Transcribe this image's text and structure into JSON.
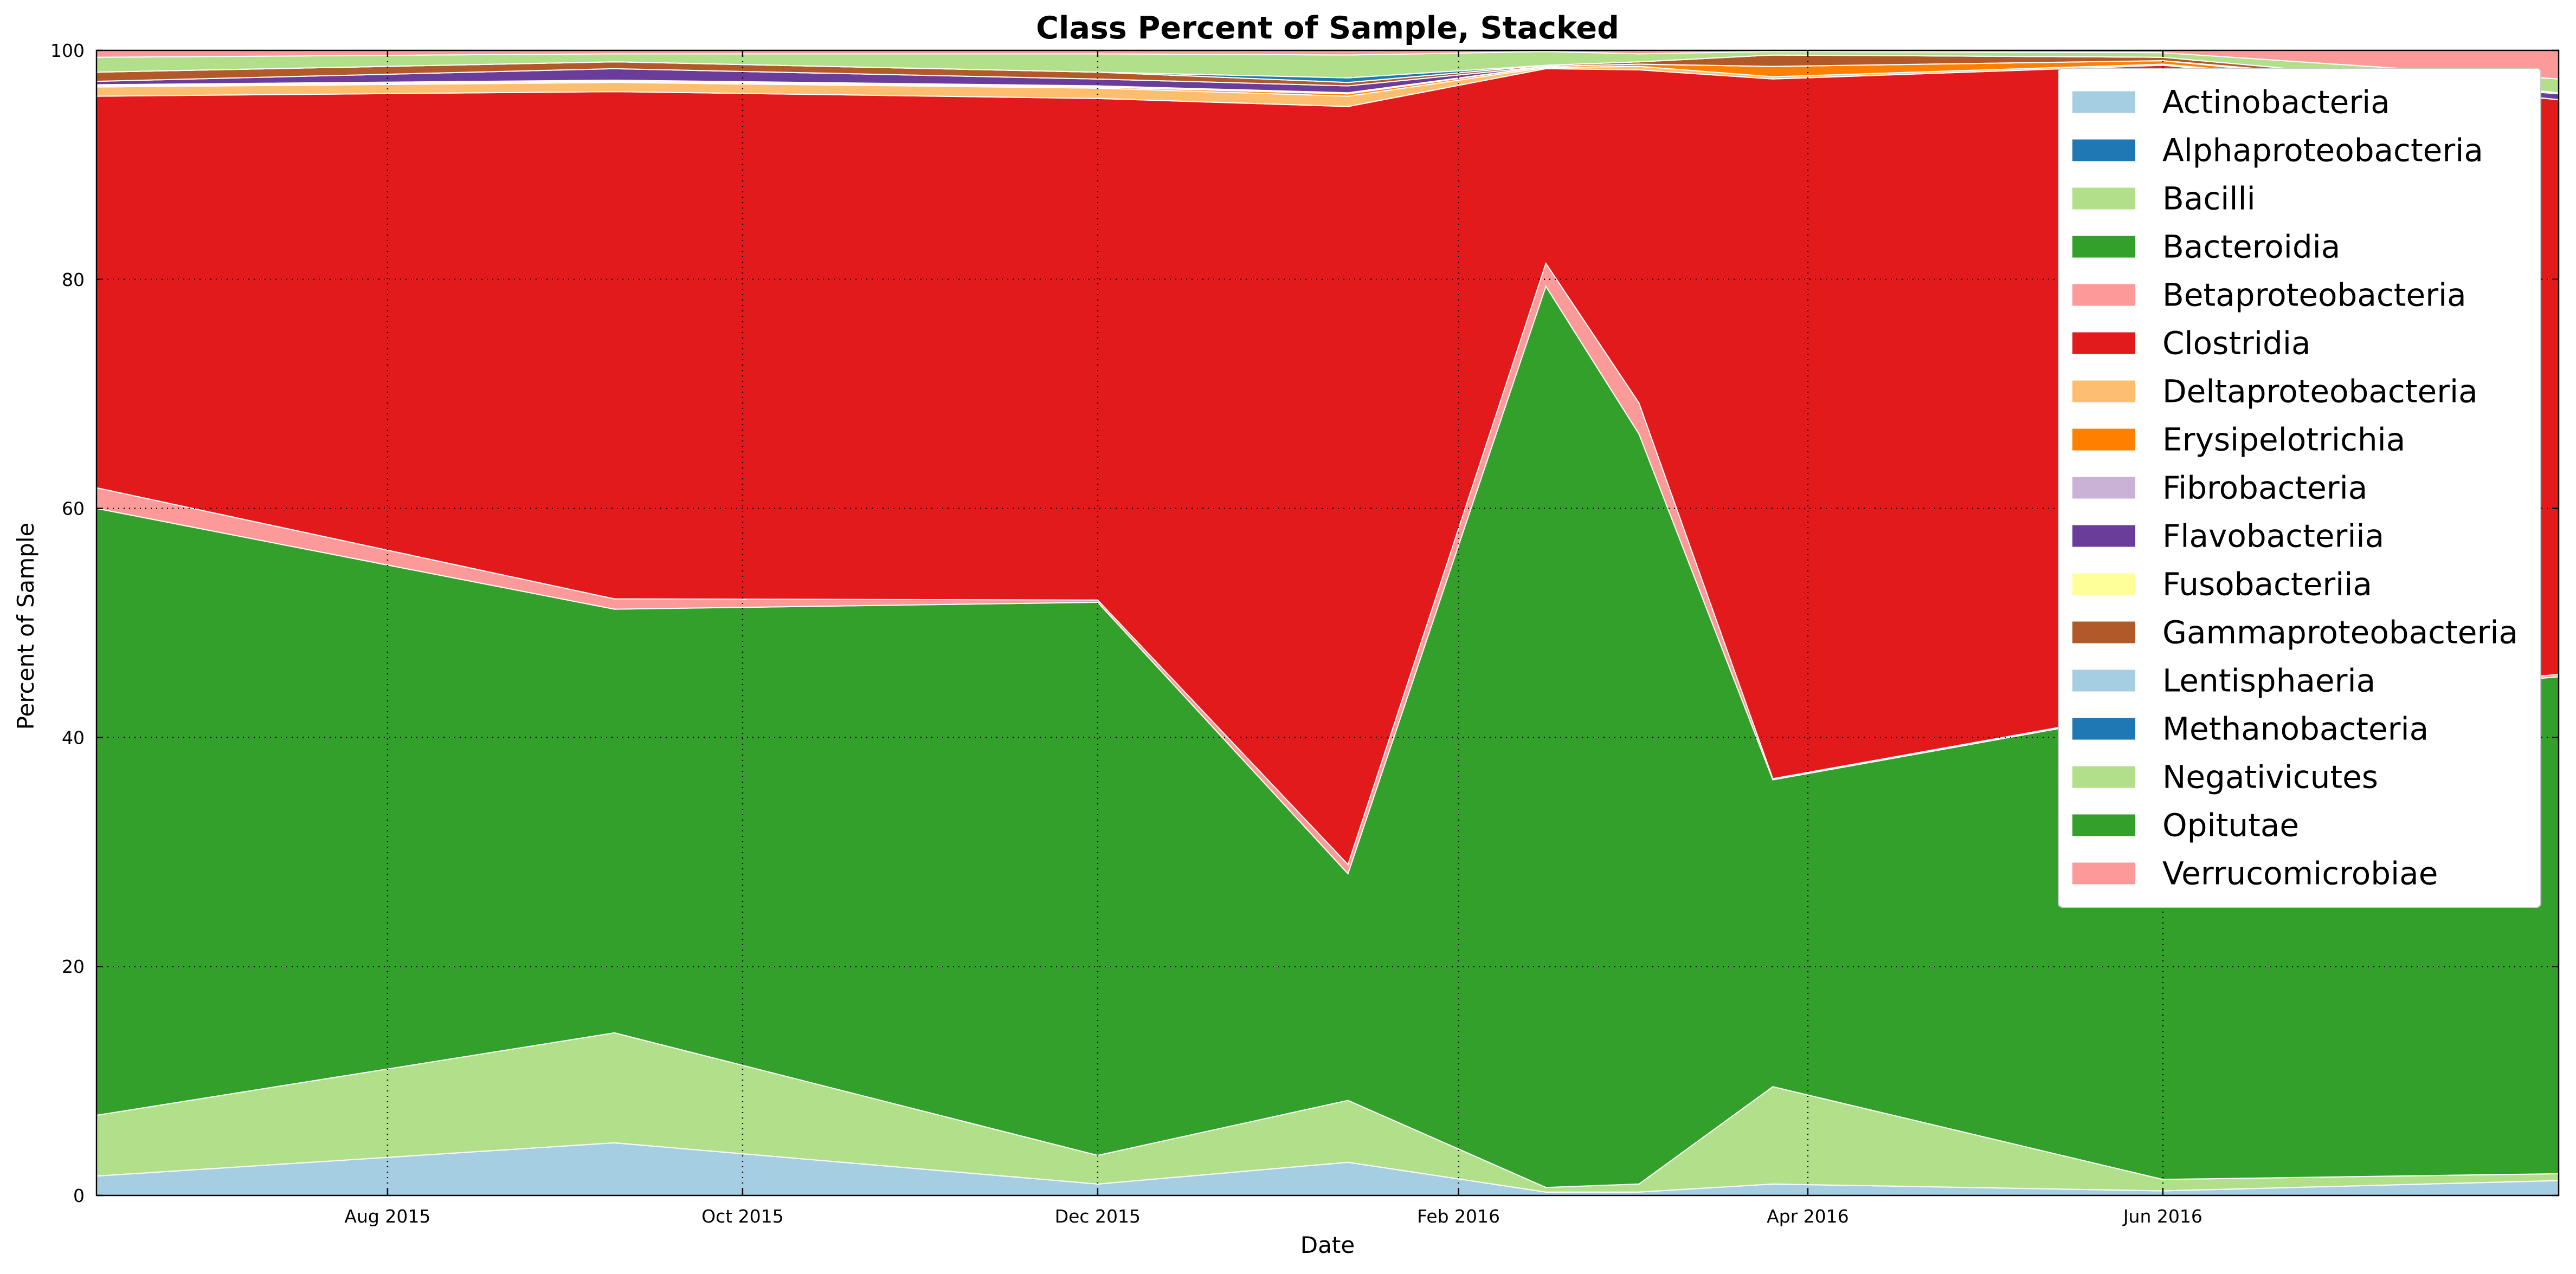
{
  "chart_data": {
    "type": "area",
    "stacked": true,
    "title": "Class Percent of Sample, Stacked",
    "xlabel": "Date",
    "ylabel": "Percent of Sample",
    "xlim": [
      "2015-06-12",
      "2016-08-08"
    ],
    "ylim": [
      0,
      100
    ],
    "yticks": [
      0,
      20,
      40,
      60,
      80,
      100
    ],
    "xticks": [
      {
        "date": "2015-08-01",
        "label": "Aug 2015"
      },
      {
        "date": "2015-10-01",
        "label": "Oct 2015"
      },
      {
        "date": "2015-12-01",
        "label": "Dec 2015"
      },
      {
        "date": "2016-02-01",
        "label": "Feb 2016"
      },
      {
        "date": "2016-04-01",
        "label": "Apr 2016"
      },
      {
        "date": "2016-06-01",
        "label": "Jun 2016"
      }
    ],
    "grid": true,
    "legend_position": "top-right",
    "x": [
      "2015-06-12",
      "2015-09-09",
      "2015-12-01",
      "2016-01-13",
      "2016-02-16",
      "2016-03-03",
      "2016-03-26",
      "2016-06-01",
      "2016-08-08"
    ],
    "series": [
      {
        "name": "Actinobacteria",
        "color": "#a6cee3",
        "values": [
          1.7,
          4.6,
          1.0,
          2.9,
          0.3,
          0.3,
          1.0,
          0.4,
          1.3
        ]
      },
      {
        "name": "Alphaproteobacteria",
        "color": "#1f78b4",
        "values": [
          0.0,
          0.0,
          0.0,
          0.0,
          0.0,
          0.0,
          0.0,
          0.0,
          0.0
        ]
      },
      {
        "name": "Bacilli",
        "color": "#b2df8a",
        "values": [
          5.3,
          9.6,
          2.5,
          5.4,
          0.4,
          0.7,
          8.5,
          1.0,
          0.6
        ]
      },
      {
        "name": "Bacteroidia",
        "color": "#33a02c",
        "values": [
          53.0,
          37.0,
          48.3,
          19.8,
          78.7,
          65.5,
          26.8,
          41.0,
          43.4
        ]
      },
      {
        "name": "Betaproteobacteria",
        "color": "#fb9a99",
        "values": [
          1.8,
          0.9,
          0.2,
          0.8,
          2.0,
          2.7,
          0.1,
          0.1,
          0.2
        ]
      },
      {
        "name": "Clostridia",
        "color": "#e31a1c",
        "values": [
          34.2,
          44.3,
          43.8,
          66.2,
          17.0,
          29.1,
          61.1,
          56.2,
          50.2
        ]
      },
      {
        "name": "Deltaproteobacteria",
        "color": "#fdbf6f",
        "values": [
          0.8,
          0.8,
          0.9,
          0.9,
          0.1,
          0.3,
          0.2,
          0.1,
          0.0
        ]
      },
      {
        "name": "Erysipelotrichia",
        "color": "#ff7f00",
        "values": [
          0.1,
          0.1,
          0.1,
          0.2,
          0.1,
          0.2,
          0.9,
          0.3,
          0.0
        ]
      },
      {
        "name": "Fibrobacteria",
        "color": "#cab2d6",
        "values": [
          0.1,
          0.1,
          0.1,
          0.1,
          0.0,
          0.0,
          0.0,
          0.0,
          0.0
        ]
      },
      {
        "name": "Flavobacteriia",
        "color": "#6a3d9a",
        "values": [
          0.3,
          1.0,
          0.6,
          0.6,
          0.0,
          0.0,
          0.0,
          0.0,
          0.5
        ]
      },
      {
        "name": "Fusobacteriia",
        "color": "#ffff99",
        "values": [
          0.0,
          0.0,
          0.0,
          0.0,
          0.0,
          0.0,
          0.0,
          0.0,
          0.0
        ]
      },
      {
        "name": "Gammaproteobacteria",
        "color": "#b15928",
        "values": [
          0.8,
          0.6,
          0.6,
          0.3,
          0.1,
          0.2,
          1.0,
          0.3,
          0.1
        ]
      },
      {
        "name": "Lentisphaeria",
        "color": "#a6cee3",
        "values": [
          0.0,
          0.0,
          0.0,
          0.0,
          0.0,
          0.0,
          0.0,
          0.0,
          0.0
        ]
      },
      {
        "name": "Methanobacteria",
        "color": "#1f78b4",
        "values": [
          0.0,
          0.0,
          0.0,
          0.4,
          0.0,
          0.0,
          0.0,
          0.0,
          0.0
        ]
      },
      {
        "name": "Negativicutes",
        "color": "#b2df8a",
        "values": [
          1.3,
          0.7,
          1.6,
          2.0,
          1.2,
          0.7,
          0.3,
          0.4,
          1.2
        ]
      },
      {
        "name": "Opitutae",
        "color": "#33a02c",
        "values": [
          0.0,
          0.0,
          0.0,
          0.0,
          0.0,
          0.0,
          0.0,
          0.0,
          0.0
        ]
      },
      {
        "name": "Verrucomicrobiae",
        "color": "#fb9a99",
        "values": [
          0.6,
          0.3,
          0.3,
          0.4,
          0.1,
          0.3,
          0.1,
          0.2,
          2.5
        ]
      }
    ]
  }
}
